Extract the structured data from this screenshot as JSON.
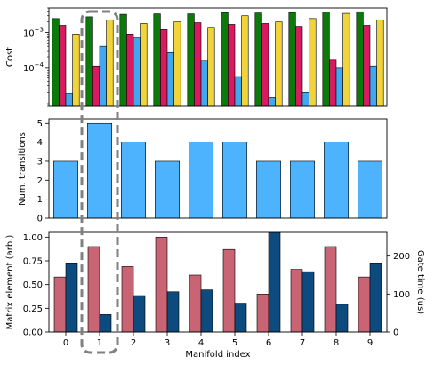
{
  "chart_data": [
    {
      "type": "bar",
      "panel": "top",
      "ylabel": "Cost",
      "yscale": "log",
      "ylim": [
        8e-06,
        0.005
      ],
      "yticks": [
        {
          "value": 0.001,
          "base": "10",
          "exp": "−3"
        },
        {
          "value": 0.0001,
          "base": "10",
          "exp": "−4"
        }
      ],
      "categories": [
        "0",
        "1",
        "2",
        "3",
        "4",
        "5",
        "6",
        "7",
        "8",
        "9"
      ],
      "series": [
        {
          "color": "#0b7a0b",
          "values": [
            0.0025,
            0.0028,
            0.0033,
            0.0034,
            0.0034,
            0.0037,
            0.0036,
            0.0037,
            0.0038,
            0.0039
          ]
        },
        {
          "color": "#d81b60",
          "values": [
            0.0016,
            0.00011,
            0.0009,
            0.0012,
            0.0019,
            0.0017,
            0.0018,
            0.0015,
            0.00017,
            0.0016
          ]
        },
        {
          "color": "#41a8f0",
          "values": [
            1.8e-05,
            0.0004,
            0.0007,
            0.00028,
            0.00016,
            5.5e-05,
            1.4e-05,
            2e-05,
            0.0001,
            0.00011
          ]
        },
        {
          "color": "#f0d43a",
          "values": [
            0.0009,
            0.0023,
            0.0018,
            0.002,
            0.0014,
            0.003,
            0.002,
            0.0025,
            0.0035,
            0.0023
          ]
        }
      ],
      "grid": false
    },
    {
      "type": "bar",
      "panel": "middle",
      "ylabel": "Num. transitions",
      "ylim": [
        0,
        5.2
      ],
      "yticks": [
        0,
        1,
        2,
        3,
        4,
        5
      ],
      "categories": [
        "0",
        "1",
        "2",
        "3",
        "4",
        "5",
        "6",
        "7",
        "8",
        "9"
      ],
      "values": [
        3,
        5,
        4,
        3,
        4,
        4,
        3,
        3,
        4,
        3
      ],
      "color": "#4db3ff",
      "grid": false
    },
    {
      "type": "bar",
      "panel": "bottom",
      "xlabel": "Manifold index",
      "ylabel": "Matrix element (arb.)",
      "ylabel_right": "Gate time (us)",
      "ylim": [
        0,
        1.05
      ],
      "ylim_right": [
        0,
        262.5
      ],
      "yticks": [
        "0.00",
        "0.25",
        "0.50",
        "0.75",
        "1.00"
      ],
      "yticks_right": [
        0,
        100,
        200
      ],
      "categories": [
        "0",
        "1",
        "2",
        "3",
        "4",
        "5",
        "6",
        "7",
        "8",
        "9"
      ],
      "series": [
        {
          "axis": "left",
          "color": "#c86473",
          "values": [
            0.58,
            0.9,
            0.69,
            1.0,
            0.6,
            0.87,
            0.4,
            0.66,
            0.9,
            0.58
          ]
        },
        {
          "axis": "right",
          "color": "#0d4a7e",
          "values": [
            182,
            46,
            96,
            106,
            111,
            76,
            262,
            159,
            73,
            182
          ]
        }
      ],
      "grid": false
    }
  ],
  "highlight": {
    "category": "1",
    "style": "dashed"
  }
}
